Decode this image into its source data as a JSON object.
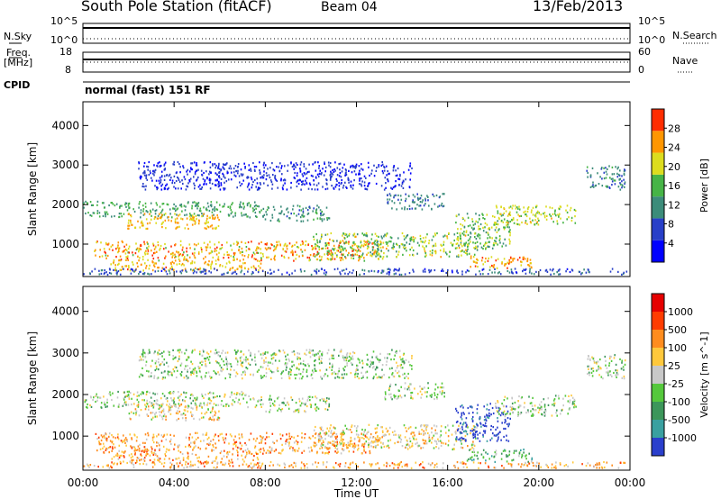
{
  "header": {
    "title": "South Pole Station (fitACF)",
    "beam": "Beam 04",
    "date": "13/Feb/2013"
  },
  "top_panels": {
    "nsky_label": "N.Sky",
    "nsky_ticks": [
      "10^5",
      "10^0"
    ],
    "nsearch_label": "N.Search",
    "nsearch_ticks": [
      "10^5",
      "10^0"
    ],
    "freq_label": "Freq.",
    "freq_unit": "[MHz]",
    "freq_ticks": [
      "18",
      "8"
    ],
    "nave_label": "Nave",
    "nave_ticks": [
      "60",
      "0"
    ],
    "cpid_label": "CPID",
    "mode_text": "normal (fast) 151 RF"
  },
  "chart_data": [
    {
      "type": "heatmap",
      "ylabel": "Slant Range [km]",
      "yticks": [
        "4000",
        "3000",
        "2000",
        "1000"
      ],
      "ylim": [
        180,
        4600
      ],
      "colorbar": {
        "label": "Power [dB]",
        "ticks": [
          "28",
          "24",
          "20",
          "16",
          "12",
          "8",
          "4"
        ],
        "range": [
          0,
          30
        ],
        "colors": [
          "#0000ff",
          "#283fc8",
          "#3c8c7a",
          "#46b446",
          "#dcdc1e",
          "#ff9600",
          "#ff2d00"
        ]
      }
    },
    {
      "type": "heatmap",
      "ylabel": "Slant Range [km]",
      "yticks": [
        "4000",
        "3000",
        "2000",
        "1000"
      ],
      "ylim": [
        180,
        4600
      ],
      "xlabel": "Time UT",
      "xticks": [
        "00:00",
        "04:00",
        "08:00",
        "12:00",
        "16:00",
        "20:00",
        "00:00"
      ],
      "colorbar": {
        "label": "Velocity [m s^-1]",
        "ticks": [
          "1000",
          "500",
          "100",
          "25",
          "-25",
          "-100",
          "-500",
          "-1000"
        ],
        "colors": [
          "#2a3fcc",
          "#3aa0a0",
          "#3c965a",
          "#55c83c",
          "#c8c8c8",
          "#ffc83c",
          "#ff8c1e",
          "#ff3c00",
          "#e60000"
        ]
      }
    }
  ]
}
